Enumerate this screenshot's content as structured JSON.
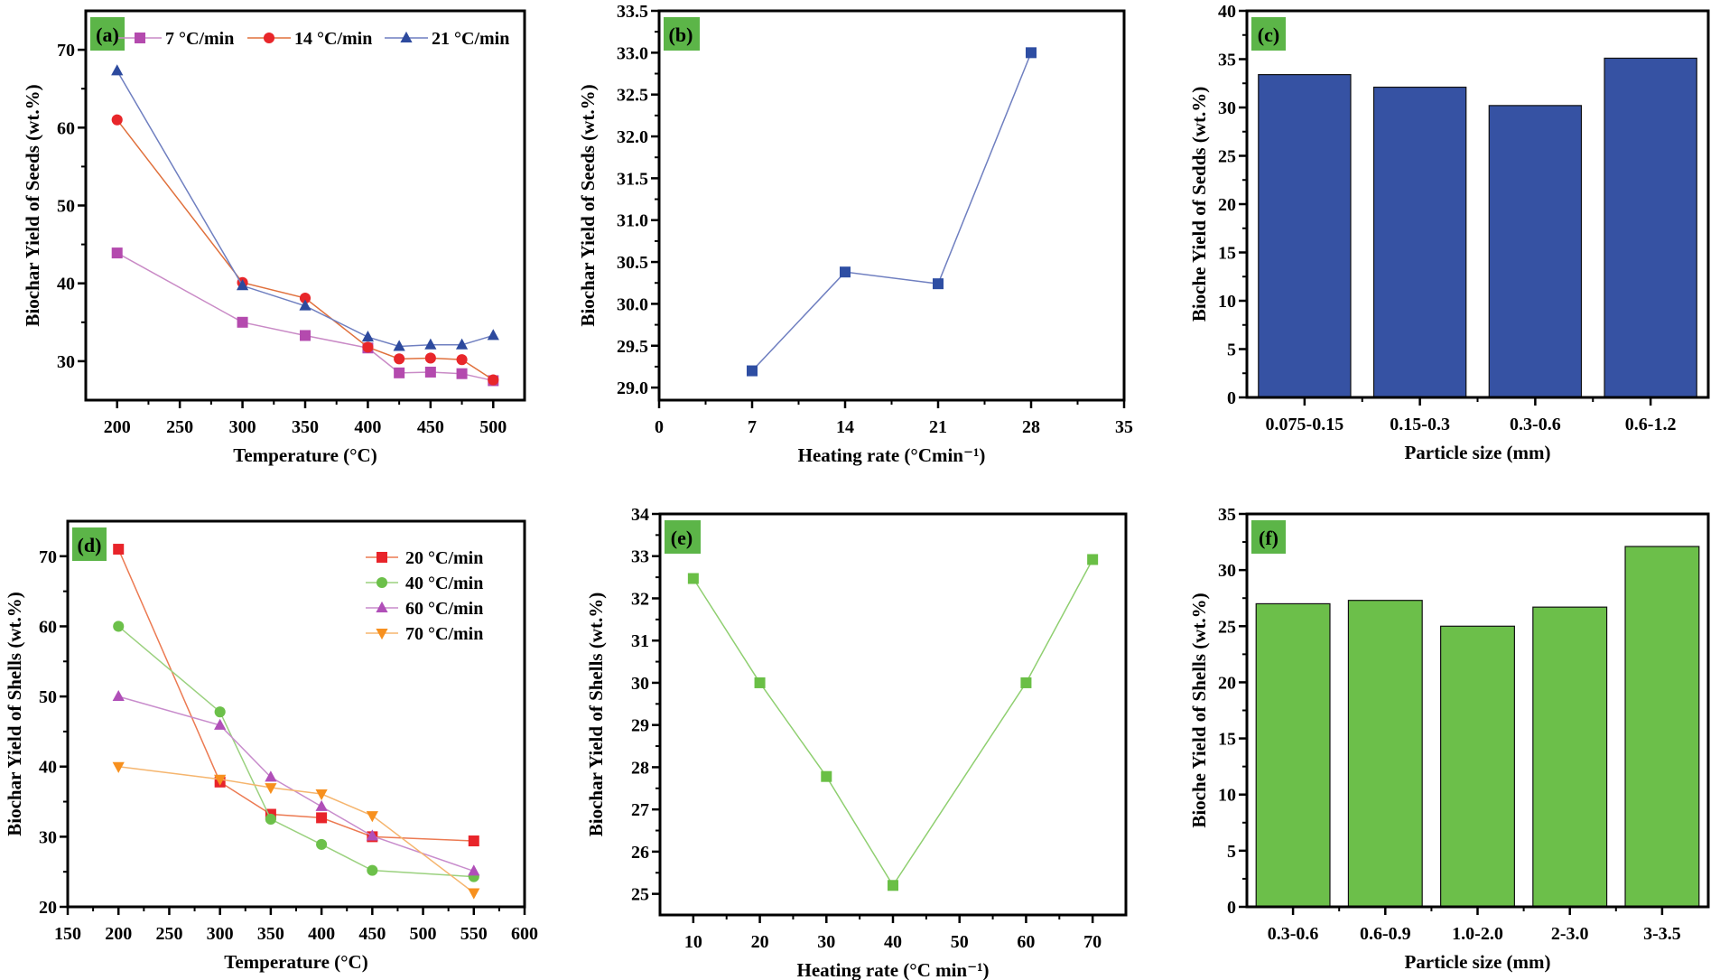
{
  "chart_data": [
    {
      "panel": "(a)",
      "type": "line",
      "xlabel": "Temperature (°C)",
      "ylabel": "Biochar Yield of Seeds (wt.%)",
      "xlim": [
        175,
        525
      ],
      "ylim": [
        25,
        75
      ],
      "xticks": [
        200,
        250,
        300,
        350,
        400,
        450,
        500
      ],
      "yticks": [
        30,
        40,
        50,
        60,
        70
      ],
      "legend": "top-horizontal",
      "series": [
        {
          "name": "7 °C/min",
          "marker": "square",
          "color": "#b44aae",
          "line": "#c98ac6",
          "x": [
            200,
            300,
            350,
            400,
            425,
            450,
            475,
            500
          ],
          "y": [
            43.9,
            35.0,
            33.3,
            31.7,
            28.5,
            28.6,
            28.4,
            27.5
          ]
        },
        {
          "name": "14 °C/min",
          "marker": "circle",
          "color": "#e8262a",
          "line": "#e0703c",
          "x": [
            200,
            300,
            350,
            400,
            425,
            450,
            475,
            500
          ],
          "y": [
            61.0,
            40.1,
            38.1,
            31.8,
            30.3,
            30.4,
            30.2,
            27.6
          ]
        },
        {
          "name": "21 °C/min",
          "marker": "triangle-up",
          "color": "#2d4a9e",
          "line": "#6f7fc0",
          "x": [
            200,
            300,
            350,
            400,
            425,
            450,
            475,
            500
          ],
          "y": [
            67.3,
            39.7,
            37.1,
            33.1,
            31.9,
            32.1,
            32.1,
            33.3
          ]
        }
      ]
    },
    {
      "panel": "(b)",
      "type": "line",
      "xlabel": "Heating rate (°Cmin⁻¹)",
      "ylabel": "Biochar Yield of Seeds (wt.%)",
      "xlim": [
        0,
        35
      ],
      "ylim": [
        28.85,
        33.5
      ],
      "xticks": [
        0,
        7,
        14,
        21,
        28,
        35
      ],
      "yticks": [
        "29.0",
        "29.5",
        "30.0",
        "30.5",
        "31.0",
        "31.5",
        "32.0",
        "32.5",
        "33.0",
        "33.5"
      ],
      "series": [
        {
          "marker": "square",
          "color": "#2e4ea3",
          "line": "#6f7fc0",
          "x": [
            7,
            14,
            21,
            28
          ],
          "y": [
            29.2,
            30.38,
            30.24,
            33.0
          ]
        }
      ]
    },
    {
      "panel": "(c)",
      "type": "bar",
      "xlabel": "Particle size (mm)",
      "ylabel": "Bioche Yield of Sedds (wt.%)",
      "ylim": [
        0,
        40
      ],
      "yticks": [
        0,
        5,
        10,
        15,
        20,
        25,
        30,
        35,
        40
      ],
      "categories": [
        "0.075-0.15",
        "0.15-0.3",
        "0.3-0.6",
        "0.6-1.2"
      ],
      "values": [
        33.4,
        32.1,
        30.2,
        35.1
      ],
      "color": "#3652a3"
    },
    {
      "panel": "(d)",
      "type": "line",
      "xlabel": "Temperature (°C)",
      "ylabel": "Biochar Yield of Shells (wt.%)",
      "xlim": [
        150,
        600
      ],
      "ylim": [
        20,
        75
      ],
      "xticks": [
        150,
        200,
        250,
        300,
        350,
        400,
        450,
        500,
        550,
        600
      ],
      "yticks": [
        20,
        30,
        40,
        50,
        60,
        70
      ],
      "legend": "top-right",
      "series": [
        {
          "name": "20 °C/min",
          "marker": "square",
          "color": "#e8242a",
          "line": "#ec7a52",
          "x": [
            200,
            300,
            350,
            400,
            450,
            550
          ],
          "y": [
            71.0,
            37.8,
            33.2,
            32.7,
            30.0,
            29.4
          ]
        },
        {
          "name": "40 °C/min",
          "marker": "circle",
          "color": "#6cc04a",
          "line": "#9bd17f",
          "x": [
            200,
            300,
            350,
            400,
            450,
            550
          ],
          "y": [
            60.0,
            47.8,
            32.5,
            28.9,
            25.2,
            24.3
          ]
        },
        {
          "name": "60 °C/min",
          "marker": "triangle-up",
          "color": "#b04fb8",
          "line": "#c88ccc",
          "x": [
            200,
            300,
            350,
            400,
            450,
            550
          ],
          "y": [
            50.0,
            45.9,
            38.5,
            34.3,
            30.1,
            25.1
          ]
        },
        {
          "name": "70 °C/min",
          "marker": "triangle-down",
          "color": "#f7901e",
          "line": "#f5b56e",
          "x": [
            200,
            300,
            350,
            400,
            450,
            550
          ],
          "y": [
            40.0,
            38.2,
            37.0,
            36.1,
            33.0,
            22.0
          ]
        }
      ]
    },
    {
      "panel": "(e)",
      "type": "line",
      "xlabel": "Heating rate (°C min⁻¹)",
      "ylabel": "Biochar Yield of Shells (wt.%)",
      "xlim": [
        5,
        75
      ],
      "ylim": [
        24.5,
        34
      ],
      "xticks": [
        10,
        20,
        30,
        40,
        50,
        60,
        70
      ],
      "yticks": [
        25,
        26,
        27,
        28,
        29,
        30,
        31,
        32,
        33,
        34
      ],
      "series": [
        {
          "marker": "square",
          "color": "#6abf46",
          "line": "#8fcf70",
          "x": [
            10,
            20,
            30,
            40,
            60,
            70
          ],
          "y": [
            32.47,
            30.0,
            27.78,
            25.2,
            30.0,
            32.92
          ]
        }
      ]
    },
    {
      "panel": "(f)",
      "type": "bar",
      "xlabel": "Particle size (mm)",
      "ylabel": "Bioche Yield of Shells (wt.%)",
      "ylim": [
        0,
        35
      ],
      "yticks": [
        0,
        5,
        10,
        15,
        20,
        25,
        30,
        35
      ],
      "categories": [
        "0.3-0.6",
        "0.6-0.9",
        "1.0-2.0",
        "2-3.0",
        "3-3.5"
      ],
      "values": [
        27.0,
        27.3,
        25.0,
        26.7,
        32.1
      ],
      "color": "#6cbf4a"
    }
  ],
  "colors": {
    "panel_label_bg": "#5cb548",
    "axis": "#000000"
  }
}
